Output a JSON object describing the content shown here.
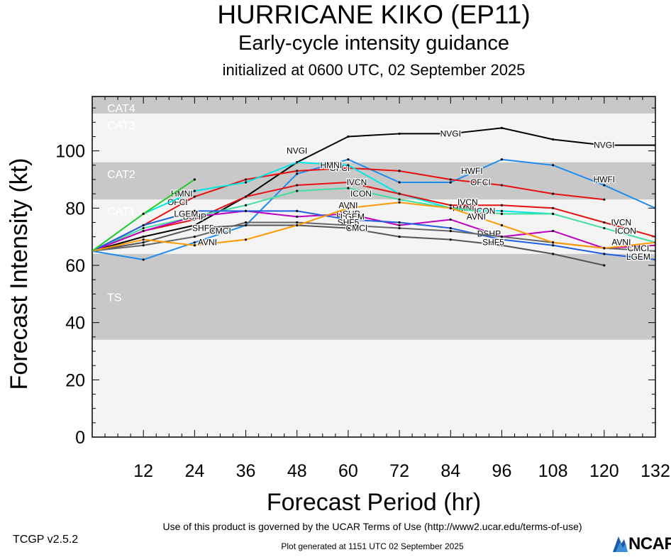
{
  "header": {
    "title": "HURRICANE KIKO (EP11)",
    "subtitle": "Early-cycle intensity guidance",
    "init": "initialized at 0600 UTC, 02 September 2025"
  },
  "footer": {
    "version": "TCGP v2.5.2",
    "terms": "Use of this product is governed by the UCAR Terms of Use (http://www2.ucar.edu/terms-of-use)",
    "generated": "Plot generated at 1151 UTC   02 September 2025",
    "logo_text": "NCAR"
  },
  "chart_data": {
    "type": "line",
    "xlabel": "Forecast Period (hr)",
    "ylabel": "Forecast Intensity (kt)",
    "xlim": [
      0,
      132
    ],
    "ylim": [
      0,
      119
    ],
    "xticks": [
      12,
      24,
      36,
      48,
      60,
      72,
      84,
      96,
      108,
      120,
      132
    ],
    "yticks": [
      0,
      20,
      40,
      60,
      80,
      100
    ],
    "bands": [
      {
        "label": "CAT4",
        "from": 113,
        "to": 119,
        "color": "#c8c8c8"
      },
      {
        "label": "CAT3",
        "from": 96,
        "to": 113,
        "color": "#f4f4f4"
      },
      {
        "label": "CAT2",
        "from": 83,
        "to": 96,
        "color": "#c8c8c8"
      },
      {
        "label": "CAT1",
        "from": 64,
        "to": 83,
        "color": "#f4f4f4"
      },
      {
        "label": "TS",
        "from": 34,
        "to": 64,
        "color": "#c8c8c8"
      },
      {
        "label": "",
        "from": 0,
        "to": 34,
        "color": "#f4f4f4"
      }
    ],
    "series": [
      {
        "name": "NVGI",
        "color": "#000000",
        "x": [
          0,
          12,
          24,
          36,
          48,
          60,
          72,
          84,
          96,
          108,
          120,
          132
        ],
        "values": [
          65,
          70,
          74,
          84,
          96,
          105,
          106,
          106,
          108,
          104,
          102,
          102
        ],
        "labels": [
          [
            48,
            100
          ],
          [
            84,
            106
          ],
          [
            120,
            102
          ]
        ]
      },
      {
        "name": "HWFI",
        "color": "#1f8cf0",
        "x": [
          0,
          12,
          24,
          36,
          48,
          60,
          72,
          84,
          96,
          108,
          120,
          132
        ],
        "values": [
          65,
          62,
          68,
          74,
          92,
          97,
          89,
          89,
          97,
          95,
          88,
          80
        ],
        "labels": [
          [
            56,
            95
          ],
          [
            89,
            93
          ],
          [
            120,
            90
          ]
        ]
      },
      {
        "name": "OFCI",
        "color": "#e81010",
        "x": [
          0,
          12,
          24,
          36,
          48,
          60,
          72,
          84,
          96,
          108,
          120
        ],
        "values": [
          65,
          74,
          84,
          90,
          93,
          94,
          93,
          90,
          88,
          85,
          83
        ],
        "labels": [
          [
            20,
            82
          ],
          [
            58,
            94
          ],
          [
            91,
            89
          ]
        ]
      },
      {
        "name": "HMNI",
        "color": "#00e5e5",
        "x": [
          0,
          12,
          24,
          36,
          48,
          60,
          72,
          84,
          96,
          108
        ],
        "values": [
          65,
          78,
          86,
          89,
          96,
          95,
          85,
          80,
          79,
          78
        ],
        "labels": [
          [
            21,
            85
          ],
          [
            56,
            95
          ],
          [
            87,
            80
          ]
        ]
      },
      {
        "name": "IVCN",
        "color": "#e81010",
        "x": [
          0,
          12,
          24,
          36,
          48,
          60,
          72,
          84,
          96,
          108,
          120,
          132
        ],
        "values": [
          65,
          72,
          76,
          84,
          88,
          89,
          85,
          81,
          81,
          80,
          75,
          70
        ],
        "labels": [
          [
            62,
            89
          ],
          [
            88,
            82
          ],
          [
            124,
            75
          ]
        ]
      },
      {
        "name": "ICON",
        "color": "#3fe0a0",
        "x": [
          0,
          12,
          24,
          36,
          48,
          60,
          72,
          84,
          96,
          108,
          120,
          132
        ],
        "values": [
          65,
          73,
          77,
          81,
          86,
          87,
          83,
          80,
          78,
          78,
          73,
          68
        ],
        "labels": [
          [
            63,
            85
          ],
          [
            92,
            79
          ],
          [
            125,
            72
          ]
        ]
      },
      {
        "name": "DSHP",
        "color": "#c000c0",
        "x": [
          0,
          12,
          24,
          36,
          48,
          60,
          72,
          84,
          96,
          108,
          120,
          132
        ],
        "values": [
          65,
          72,
          77,
          79,
          77,
          78,
          74,
          76,
          70,
          72,
          66,
          67
        ],
        "labels": [
          [
            24,
            77
          ],
          [
            60,
            78
          ],
          [
            93,
            71
          ]
        ]
      },
      {
        "name": "LGEM",
        "color": "#2060e0",
        "x": [
          0,
          12,
          24,
          36,
          48,
          60,
          72,
          84,
          96,
          108,
          120,
          132
        ],
        "values": [
          65,
          74,
          79,
          79,
          79,
          76,
          75,
          73,
          69,
          67,
          64,
          62
        ],
        "labels": [
          [
            22,
            78
          ],
          [
            61,
            77
          ],
          [
            128,
            63
          ]
        ]
      },
      {
        "name": "SHF5",
        "color": "#555555",
        "x": [
          0,
          12,
          24,
          36,
          48,
          60,
          72,
          84,
          96,
          108,
          120
        ],
        "values": [
          65,
          68,
          73,
          74,
          74,
          73,
          70,
          69,
          67,
          64,
          60
        ],
        "labels": [
          [
            26,
            73
          ],
          [
            60,
            75
          ],
          [
            94,
            68
          ]
        ]
      },
      {
        "name": "CMCI",
        "color": "#666666",
        "x": [
          0,
          12,
          24,
          36,
          48,
          60,
          72,
          84,
          96,
          108,
          120,
          132
        ],
        "values": [
          65,
          67,
          70,
          75,
          75,
          74,
          73,
          72,
          70,
          68,
          66,
          65
        ],
        "labels": [
          [
            30,
            72
          ],
          [
            62,
            73
          ],
          [
            128,
            66
          ]
        ]
      },
      {
        "name": "AVNI",
        "color": "#ff9a00",
        "x": [
          0,
          12,
          24,
          36,
          48,
          60,
          72,
          84,
          96,
          108,
          120,
          132
        ],
        "values": [
          65,
          69,
          67,
          69,
          74,
          80,
          82,
          80,
          74,
          68,
          66,
          68
        ],
        "labels": [
          [
            27,
            68
          ],
          [
            60,
            81
          ],
          [
            90,
            77
          ],
          [
            124,
            68
          ]
        ]
      },
      {
        "name": "",
        "color": "#28c828",
        "x": [
          0,
          12,
          24
        ],
        "values": [
          65,
          78,
          90
        ],
        "labels": []
      }
    ]
  }
}
